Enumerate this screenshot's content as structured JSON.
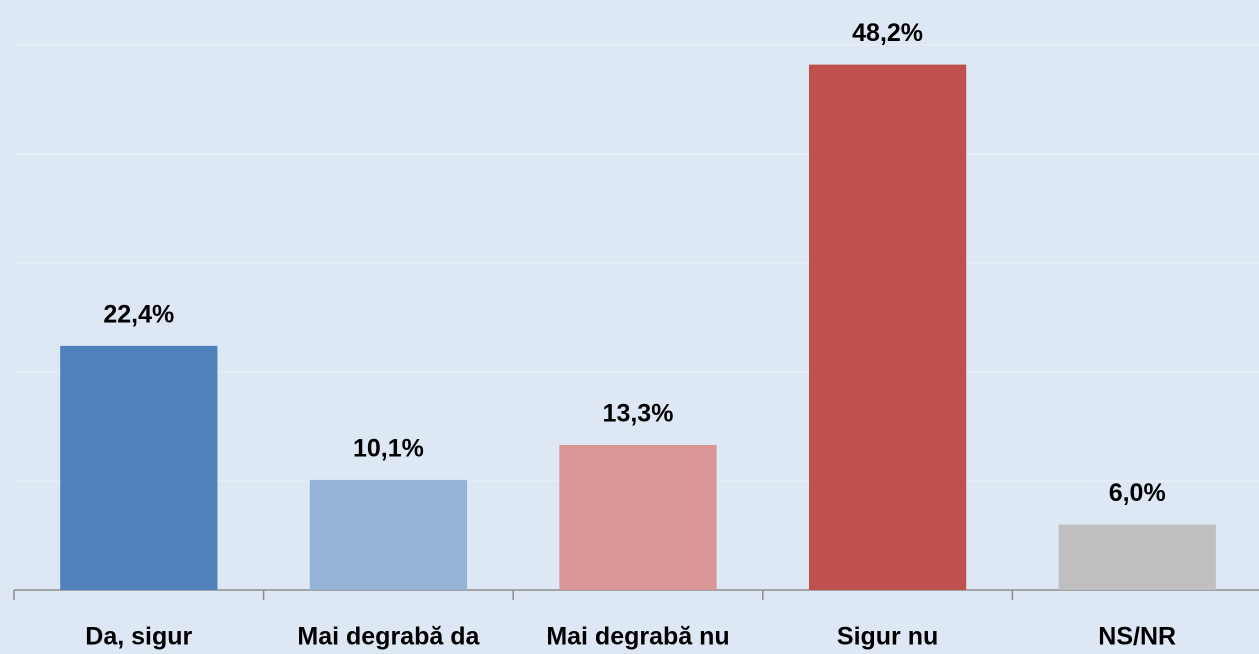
{
  "chart_data": {
    "type": "bar",
    "categories": [
      "Da, sigur",
      "Mai degrabă da",
      "Mai degrabă nu",
      "Sigur nu",
      "NS/NR"
    ],
    "values": [
      22.4,
      10.1,
      13.3,
      48.2,
      6.0
    ],
    "value_labels": [
      "22,4%",
      "10,1%",
      "13,3%",
      "48,2%",
      "6,0%"
    ],
    "colors": [
      "#4f81bd",
      "#95b3d7",
      "#d99694",
      "#c0504d",
      "#bfbfbf"
    ],
    "ylim": [
      0,
      50
    ],
    "yticks": [
      0,
      10,
      20,
      30,
      40,
      50
    ],
    "grid": true
  }
}
